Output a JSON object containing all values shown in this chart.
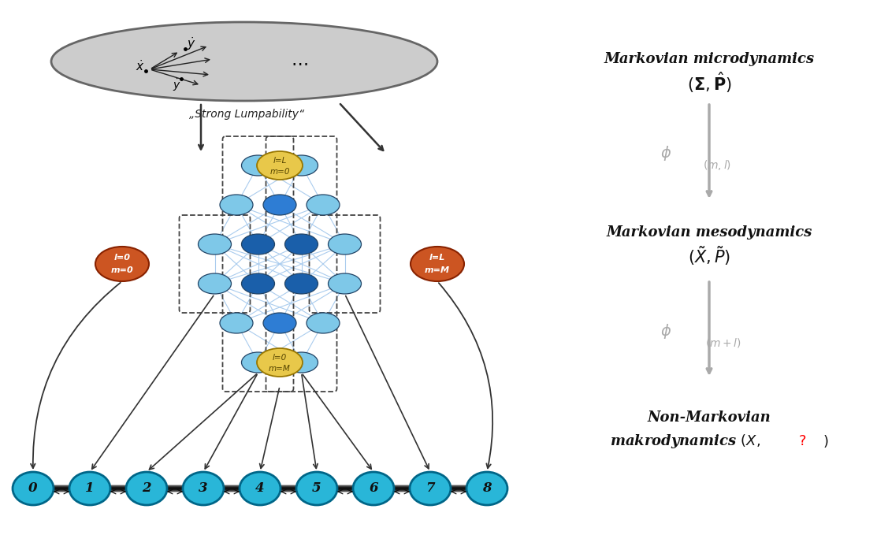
{
  "bg_color": "#ffffff",
  "cyan_color": "#29b6d8",
  "dark_blue": "#1a5faa",
  "mid_blue": "#2e7dd4",
  "light_blue": "#7ec8e8",
  "lighter_blue": "#aadcf0",
  "orange_red": "#cc5522",
  "gold": "#e8c84a",
  "bottom_nodes": [
    "0",
    "1",
    "2",
    "3",
    "4",
    "5",
    "6",
    "7",
    "8"
  ],
  "lumpability_text": "„Strong Lumpability“"
}
